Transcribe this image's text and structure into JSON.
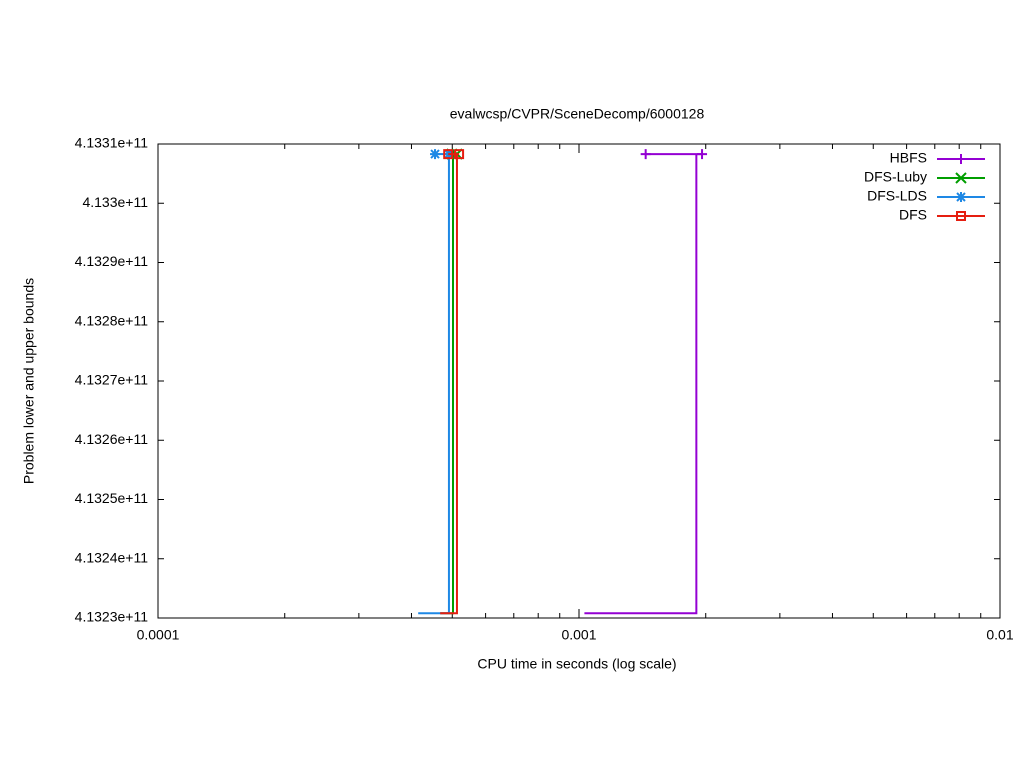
{
  "chart_data": {
    "type": "line",
    "title": "evalwcsp/CVPR/SceneDecomp/6000128",
    "x_label": "CPU time in seconds (log scale)",
    "y_label": "Problem lower and upper bounds",
    "x_log_scale": true,
    "xlim": [
      0.0001,
      0.01
    ],
    "xticks": [
      0.0001,
      0.001,
      0.01
    ],
    "ylim": [
      413230000000,
      413310000000
    ],
    "yticks": [
      {
        "value": 413230000000,
        "label": "4.1323e+11"
      },
      {
        "value": 413240000000,
        "label": "4.1324e+11"
      },
      {
        "value": 413250000000,
        "label": "4.1325e+11"
      },
      {
        "value": 413260000000,
        "label": "4.1326e+11"
      },
      {
        "value": 413270000000,
        "label": "4.1327e+11"
      },
      {
        "value": 413280000000,
        "label": "4.1328e+11"
      },
      {
        "value": 413290000000,
        "label": "4.1329e+11"
      },
      {
        "value": 413300000000,
        "label": "4.133e+11"
      },
      {
        "value": 413310000000,
        "label": "4.1331e+11"
      }
    ],
    "legend": "top-right",
    "series": [
      {
        "name": "HBFS",
        "color": "#9400d3",
        "marker": "plus",
        "lower": {
          "x": [
            0.00103,
            0.0019,
            0.0019
          ],
          "values": [
            413230800000,
            413230800000,
            413308300000
          ]
        },
        "upper": {
          "x": [
            0.00144,
            0.00196
          ],
          "values": [
            413308300000,
            413308300000
          ]
        }
      },
      {
        "name": "DFS-Luby",
        "color": "#009e00",
        "marker": "cross",
        "lower": {
          "x": [
            0.000468,
            0.000502,
            0.000502
          ],
          "values": [
            413230800000,
            413230800000,
            413308300000
          ]
        },
        "upper": {
          "x": [
            0.000499,
            0.000513
          ],
          "values": [
            413308300000,
            413308300000
          ]
        }
      },
      {
        "name": "DFS-LDS",
        "color": "#1e88e5",
        "marker": "star",
        "lower": {
          "x": [
            0.000415,
            0.000491,
            0.000491
          ],
          "values": [
            413230800000,
            413230800000,
            413308300000
          ]
        },
        "upper": {
          "x": [
            0.000455,
            0.000491
          ],
          "values": [
            413308300000,
            413308300000
          ]
        }
      },
      {
        "name": "DFS",
        "color": "#e51e10",
        "marker": "square",
        "lower": {
          "x": [
            0.000468,
            0.000513,
            0.000513
          ],
          "values": [
            413230800000,
            413230800000,
            413308300000
          ]
        },
        "upper": {
          "x": [
            0.000489,
            0.000519
          ],
          "values": [
            413308300000,
            413308300000
          ]
        }
      }
    ]
  }
}
